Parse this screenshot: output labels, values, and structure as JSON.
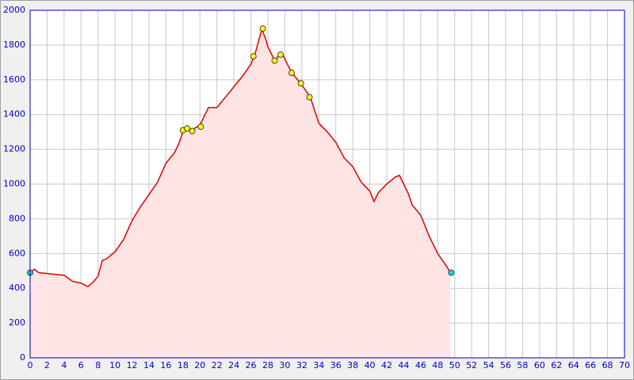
{
  "chart_data": {
    "type": "area",
    "x": [
      0,
      0.5,
      1,
      2,
      3,
      4,
      5,
      6,
      6.8,
      7.5,
      8,
      8.5,
      9,
      10,
      11,
      12,
      13,
      14,
      15,
      16,
      17,
      17.5,
      18,
      18.5,
      19,
      20,
      21,
      22,
      23,
      24,
      25,
      26,
      26.5,
      27,
      27.3,
      27.7,
      28,
      28.5,
      28.8,
      29.3,
      29.8,
      30.5,
      31,
      32,
      33,
      34,
      35,
      36,
      37,
      38,
      39,
      40,
      40.5,
      41,
      42,
      43,
      43.5,
      44,
      44.5,
      45,
      46,
      47,
      48,
      49,
      49.5
    ],
    "values": [
      490,
      510,
      490,
      485,
      480,
      475,
      440,
      430,
      410,
      440,
      470,
      560,
      570,
      610,
      680,
      790,
      870,
      940,
      1010,
      1120,
      1180,
      1230,
      1300,
      1320,
      1310,
      1340,
      1440,
      1440,
      1500,
      1560,
      1620,
      1690,
      1750,
      1840,
      1890,
      1840,
      1790,
      1740,
      1710,
      1740,
      1740,
      1670,
      1630,
      1570,
      1500,
      1350,
      1300,
      1240,
      1150,
      1100,
      1010,
      960,
      900,
      950,
      1000,
      1040,
      1050,
      1000,
      950,
      880,
      820,
      700,
      600,
      530,
      490
    ],
    "color": "#e00000",
    "fill_color": "#ffe4e4",
    "points": [
      {
        "color": "#ffff00",
        "x": [
          18,
          18.5,
          19.1,
          20.1,
          26.3,
          27.4,
          28.8,
          29.5,
          30.8,
          31.9,
          32.9
        ],
        "values": [
          1310,
          1320,
          1305,
          1330,
          1735,
          1895,
          1710,
          1745,
          1640,
          1580,
          1500
        ]
      },
      {
        "color": "#00e0e0",
        "x": [
          0,
          49.6
        ],
        "values": [
          490,
          490
        ]
      }
    ],
    "xlim": [
      0,
      70
    ],
    "xticks": [
      0,
      2,
      4,
      6,
      8,
      10,
      12,
      14,
      16,
      18,
      20,
      22,
      24,
      26,
      28,
      30,
      32,
      34,
      36,
      38,
      40,
      42,
      44,
      46,
      48,
      50,
      52,
      54,
      56,
      58,
      60,
      62,
      64,
      66,
      68,
      70
    ],
    "ylim": [
      0,
      2000
    ],
    "yticks": [
      0,
      200,
      400,
      600,
      800,
      1000,
      1200,
      1400,
      1600,
      1800,
      2000
    ],
    "grid": true
  }
}
